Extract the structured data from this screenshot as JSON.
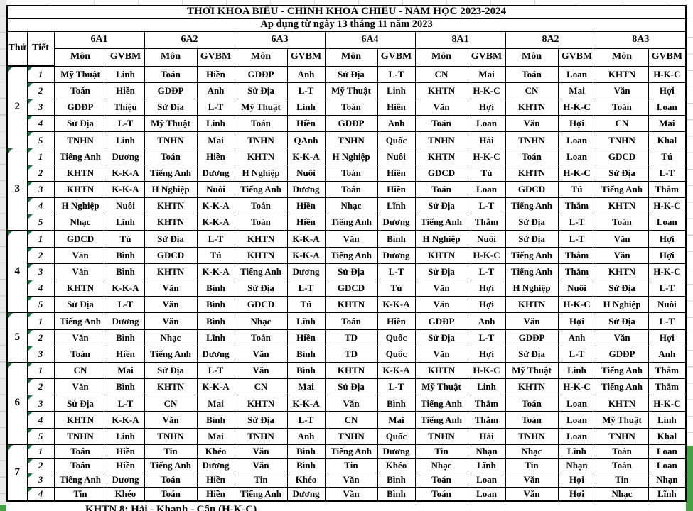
{
  "page": {
    "title_line1": "THỜI KHÓA BIỂU - CHÍNH KHOÁ CHIỀU - NĂM HỌC 2023-2024",
    "title_line2": "Áp dụng từ ngày 13 tháng 11 năm 2023"
  },
  "header": {
    "day_col": "Thứ",
    "period_col": "Tiết",
    "subject_col": "Môn",
    "teacher_col": "GVBM",
    "classes": [
      "6A1",
      "6A2",
      "6A3",
      "6A4",
      "8A1",
      "8A2",
      "8A3"
    ]
  },
  "schedule": {
    "days": [
      {
        "day": "2",
        "periods": [
          {
            "period": "1",
            "highlight": false,
            "cells": [
              [
                "Mỹ Thuật",
                "Linh"
              ],
              [
                "Toán",
                "Hiền"
              ],
              [
                "GDĐP",
                "Anh"
              ],
              [
                "Sử Địa",
                "L-T"
              ],
              [
                "CN",
                "Mai"
              ],
              [
                "Toán",
                "Loan"
              ],
              [
                "KHTN",
                "H-K-C"
              ]
            ]
          },
          {
            "period": "2",
            "highlight": false,
            "cells": [
              [
                "Toán",
                "Hiền"
              ],
              [
                "GDĐP",
                "Anh"
              ],
              [
                "Sử Địa",
                "L-T"
              ],
              [
                "Mỹ Thuật",
                "Linh"
              ],
              [
                "KHTN",
                "H-K-C"
              ],
              [
                "CN",
                "Mai"
              ],
              [
                "Văn",
                "Hợi"
              ]
            ]
          },
          {
            "period": "3",
            "highlight": false,
            "cells": [
              [
                "GDĐP",
                "Thiệu"
              ],
              [
                "Sử Địa",
                "L-T"
              ],
              [
                "Mỹ Thuật",
                "Linh"
              ],
              [
                "Toán",
                "Hiền"
              ],
              [
                "Văn",
                "Hợi"
              ],
              [
                "KHTN",
                "H-K-C"
              ],
              [
                "Toán",
                "Loan"
              ]
            ]
          },
          {
            "period": "4",
            "highlight": false,
            "cells": [
              [
                "Sử Địa",
                "L-T"
              ],
              [
                "Mỹ Thuật",
                "Linh"
              ],
              [
                "Toán",
                "Hiền"
              ],
              [
                "GDĐP",
                "Anh"
              ],
              [
                "Toán",
                "Loan"
              ],
              [
                "Văn",
                "Hợi"
              ],
              [
                "CN",
                "Mai"
              ]
            ]
          },
          {
            "period": "5",
            "highlight": true,
            "cells": [
              [
                "TNHN",
                "Linh"
              ],
              [
                "TNHN",
                "Mai"
              ],
              [
                "TNHN",
                "QAnh"
              ],
              [
                "TNHN",
                "Quốc"
              ],
              [
                "TNHN",
                "Hải"
              ],
              [
                "TNHN",
                "Loan"
              ],
              [
                "TNHN",
                "Khal"
              ]
            ]
          }
        ]
      },
      {
        "day": "3",
        "periods": [
          {
            "period": "1",
            "highlight": false,
            "cells": [
              [
                "Tiếng Anh",
                "Dương"
              ],
              [
                "Toán",
                "Hiền"
              ],
              [
                "KHTN",
                "K-K-A"
              ],
              [
                "H Nghiệp",
                "Nuôi"
              ],
              [
                "KHTN",
                "H-K-C"
              ],
              [
                "Toán",
                "Loan"
              ],
              [
                "GDCD",
                "Tú"
              ]
            ]
          },
          {
            "period": "2",
            "highlight": false,
            "cells": [
              [
                "KHTN",
                "K-K-A"
              ],
              [
                "Tiếng Anh",
                "Dương"
              ],
              [
                "H Nghiệp",
                "Nuôi"
              ],
              [
                "Toán",
                "Hiền"
              ],
              [
                "GDCD",
                "Tú"
              ],
              [
                "KHTN",
                "H-K-C"
              ],
              [
                "Sử Địa",
                "L-T"
              ]
            ]
          },
          {
            "period": "3",
            "highlight": false,
            "cells": [
              [
                "KHTN",
                "K-K-A"
              ],
              [
                "H Nghiệp",
                "Nuôi"
              ],
              [
                "Tiếng Anh",
                "Dương"
              ],
              [
                "Toán",
                "Hiền"
              ],
              [
                "Toán",
                "Loan"
              ],
              [
                "GDCD",
                "Tú"
              ],
              [
                "Tiếng Anh",
                "Thẳm"
              ]
            ]
          },
          {
            "period": "4",
            "highlight": false,
            "cells": [
              [
                "H Nghiệp",
                "Nuôi"
              ],
              [
                "KHTN",
                "K-K-A"
              ],
              [
                "Toán",
                "Hiền"
              ],
              [
                "Nhạc",
                "Lĩnh"
              ],
              [
                "Sử Địa",
                "L-T"
              ],
              [
                "Tiếng Anh",
                "Thẳm"
              ],
              [
                "KHTN",
                "H-K-C"
              ]
            ]
          },
          {
            "period": "5",
            "highlight": false,
            "cells": [
              [
                "Nhạc",
                "Lĩnh"
              ],
              [
                "KHTN",
                "K-K-A"
              ],
              [
                "Toán",
                "Hiền"
              ],
              [
                "Tiếng Anh",
                "Dương"
              ],
              [
                "Tiếng Anh",
                "Thẳm"
              ],
              [
                "Sử Địa",
                "L-T"
              ],
              [
                "Toán",
                "Loan"
              ]
            ]
          }
        ]
      },
      {
        "day": "4",
        "periods": [
          {
            "period": "1",
            "highlight": false,
            "cells": [
              [
                "GDCD",
                "Tú"
              ],
              [
                "Sử Địa",
                "L-T"
              ],
              [
                "KHTN",
                "K-K-A"
              ],
              [
                "Văn",
                "Bình"
              ],
              [
                "H Nghiệp",
                "Nuôi"
              ],
              [
                "Sử Địa",
                "L-T"
              ],
              [
                "Văn",
                "Hợi"
              ]
            ]
          },
          {
            "period": "2",
            "highlight": false,
            "cells": [
              [
                "Văn",
                "Bình"
              ],
              [
                "GDCD",
                "Tú"
              ],
              [
                "KHTN",
                "K-K-A"
              ],
              [
                "Tiếng Anh",
                "Dương"
              ],
              [
                "KHTN",
                "H-K-C"
              ],
              [
                "Tiếng Anh",
                "Thẳm"
              ],
              [
                "Văn",
                "Hợi"
              ]
            ]
          },
          {
            "period": "3",
            "highlight": false,
            "cells": [
              [
                "Văn",
                "Bình"
              ],
              [
                "KHTN",
                "K-K-A"
              ],
              [
                "Tiếng Anh",
                "Dương"
              ],
              [
                "Sử Địa",
                "L-T"
              ],
              [
                "Sử Địa",
                "L-T"
              ],
              [
                "Tiếng Anh",
                "Thẳm"
              ],
              [
                "KHTN",
                "H-K-C"
              ]
            ]
          },
          {
            "period": "4",
            "highlight": false,
            "cells": [
              [
                "KHTN",
                "K-K-A"
              ],
              [
                "Văn",
                "Bình"
              ],
              [
                "Sử Địa",
                "L-T"
              ],
              [
                "GDCD",
                "Tú"
              ],
              [
                "Văn",
                "Hợi"
              ],
              [
                "H Nghiệp",
                "Nuôi"
              ],
              [
                "Sử Địa",
                "L-T"
              ]
            ]
          },
          {
            "period": "5",
            "highlight": false,
            "cells": [
              [
                "Sử Địa",
                "L-T"
              ],
              [
                "Văn",
                "Bình"
              ],
              [
                "GDCD",
                "Tú"
              ],
              [
                "KHTN",
                "K-K-A"
              ],
              [
                "Văn",
                "Hợi"
              ],
              [
                "KHTN",
                "H-K-C"
              ],
              [
                "H Nghiệp",
                "Nuôi"
              ]
            ]
          }
        ]
      },
      {
        "day": "5",
        "periods": [
          {
            "period": "1",
            "highlight": false,
            "cells": [
              [
                "Tiếng Anh",
                "Dương"
              ],
              [
                "Văn",
                "Bình"
              ],
              [
                "Nhạc",
                "Lĩnh"
              ],
              [
                "Toán",
                "Hiền"
              ],
              [
                "GDĐP",
                "Anh"
              ],
              [
                "Văn",
                "Hợi"
              ],
              [
                "Sử Địa",
                "L-T"
              ]
            ]
          },
          {
            "period": "2",
            "highlight": false,
            "cells": [
              [
                "Văn",
                "Bình"
              ],
              [
                "Nhạc",
                "Lĩnh"
              ],
              [
                "Toán",
                "Hiền"
              ],
              [
                "TD",
                "Quốc"
              ],
              [
                "Sử Địa",
                "L-T"
              ],
              [
                "GDĐP",
                "Anh"
              ],
              [
                "Văn",
                "Hợi"
              ]
            ]
          },
          {
            "period": "3",
            "highlight": false,
            "cells": [
              [
                "Toán",
                "Hiền"
              ],
              [
                "Tiếng Anh",
                "Dương"
              ],
              [
                "Văn",
                "Bình"
              ],
              [
                "TD",
                "Quốc"
              ],
              [
                "Văn",
                "Hợi"
              ],
              [
                "Sử Địa",
                "L-T"
              ],
              [
                "GDĐP",
                "Anh"
              ]
            ]
          }
        ]
      },
      {
        "day": "6",
        "periods": [
          {
            "period": "1",
            "highlight": false,
            "cells": [
              [
                "CN",
                "Mai"
              ],
              [
                "Sử Địa",
                "L-T"
              ],
              [
                "Văn",
                "Bình"
              ],
              [
                "KHTN",
                "K-K-A"
              ],
              [
                "KHTN",
                "H-K-C"
              ],
              [
                "Mỹ Thuật",
                "Linh"
              ],
              [
                "Tiếng Anh",
                "Thẳm"
              ]
            ]
          },
          {
            "period": "2",
            "highlight": false,
            "cells": [
              [
                "Văn",
                "Bình"
              ],
              [
                "KHTN",
                "K-K-A"
              ],
              [
                "CN",
                "Mai"
              ],
              [
                "Sử Địa",
                "L-T"
              ],
              [
                "Mỹ Thuật",
                "Linh"
              ],
              [
                "KHTN",
                "H-K-C"
              ],
              [
                "Tiếng Anh",
                "Thẳm"
              ]
            ]
          },
          {
            "period": "3",
            "highlight": false,
            "cells": [
              [
                "Sử Địa",
                "L-T"
              ],
              [
                "CN",
                "Mai"
              ],
              [
                "KHTN",
                "K-K-A"
              ],
              [
                "Văn",
                "Bình"
              ],
              [
                "Tiếng Anh",
                "Thẳm"
              ],
              [
                "Toán",
                "Loan"
              ],
              [
                "KHTN",
                "H-K-C"
              ]
            ]
          },
          {
            "period": "4",
            "highlight": false,
            "cells": [
              [
                "KHTN",
                "K-K-A"
              ],
              [
                "Văn",
                "Bình"
              ],
              [
                "Sử Địa",
                "L-T"
              ],
              [
                "CN",
                "Mai"
              ],
              [
                "Tiếng Anh",
                "Thẳm"
              ],
              [
                "Toán",
                "Loan"
              ],
              [
                "Mỹ Thuật",
                "Linh"
              ]
            ]
          },
          {
            "period": "5",
            "highlight": true,
            "cells": [
              [
                "TNHN",
                "Linh"
              ],
              [
                "TNHN",
                "Mai"
              ],
              [
                "TNHN",
                "Anh"
              ],
              [
                "TNHN",
                "Quốc"
              ],
              [
                "TNHN",
                "Hải"
              ],
              [
                "TNHN",
                "Loan"
              ],
              [
                "TNHN",
                "Khal"
              ]
            ]
          }
        ]
      },
      {
        "day": "7",
        "periods": [
          {
            "period": "1",
            "highlight": false,
            "cells": [
              [
                "Toán",
                "Hiền"
              ],
              [
                "Tin",
                "Khéo"
              ],
              [
                "Văn",
                "Bình"
              ],
              [
                "Tiếng Anh",
                "Dương"
              ],
              [
                "Tin",
                "Nhạn"
              ],
              [
                "Nhạc",
                "Lĩnh"
              ],
              [
                "Toán",
                "Loan"
              ]
            ]
          },
          {
            "period": "2",
            "highlight": false,
            "cells": [
              [
                "Toán",
                "Hiền"
              ],
              [
                "Tiếng Anh",
                "Dương"
              ],
              [
                "Văn",
                "Bình"
              ],
              [
                "Tin",
                "Khéo"
              ],
              [
                "Nhạc",
                "Lĩnh"
              ],
              [
                "Tin",
                "Nhạn"
              ],
              [
                "Toán",
                "Loan"
              ]
            ]
          },
          {
            "period": "3",
            "highlight": false,
            "cells": [
              [
                "Tiếng Anh",
                "Dương"
              ],
              [
                "Toán",
                "Hiền"
              ],
              [
                "Tin",
                "Khéo"
              ],
              [
                "Văn",
                "Bình"
              ],
              [
                "Toán",
                "Loan"
              ],
              [
                "Văn",
                "Hợi"
              ],
              [
                "Tin",
                "Nhạn"
              ]
            ]
          },
          {
            "period": "4",
            "highlight": false,
            "cells": [
              [
                "Tin",
                "Khéo"
              ],
              [
                "Toán",
                "Hiền"
              ],
              [
                "Tiếng Anh",
                "Dương"
              ],
              [
                "Văn",
                "Bình"
              ],
              [
                "Toán",
                "Loan"
              ],
              [
                "Văn",
                "Hợi"
              ],
              [
                "Nhạc",
                "Lĩnh"
              ]
            ]
          }
        ]
      }
    ]
  },
  "footer": {
    "note": "KHTN 8: Hải - Khanh - Cấn (H-K-C)"
  },
  "colors": {
    "highlight_text": "#FF0000",
    "flag_green": "#1E7145",
    "cell_fill_green": "#44A244"
  }
}
